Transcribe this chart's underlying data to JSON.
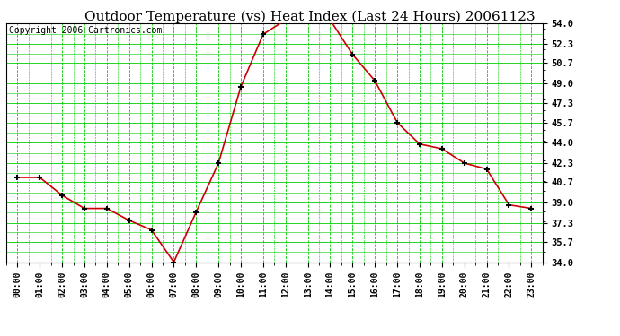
{
  "title": "Outdoor Temperature (vs) Heat Index (Last 24 Hours) 20061123",
  "copyright": "Copyright 2006 Cartronics.com",
  "x_labels": [
    "00:00",
    "01:00",
    "02:00",
    "03:00",
    "04:00",
    "05:00",
    "06:00",
    "07:00",
    "08:00",
    "09:00",
    "10:00",
    "11:00",
    "12:00",
    "13:00",
    "14:00",
    "15:00",
    "16:00",
    "17:00",
    "18:00",
    "19:00",
    "20:00",
    "21:00",
    "22:00",
    "23:00"
  ],
  "y_values": [
    41.1,
    41.1,
    39.6,
    38.5,
    38.5,
    37.5,
    36.7,
    34.0,
    38.2,
    42.3,
    48.7,
    53.1,
    54.3,
    54.3,
    54.3,
    51.4,
    49.2,
    45.7,
    43.9,
    43.5,
    42.3,
    41.8,
    38.8,
    38.5
  ],
  "y_min": 34.0,
  "y_max": 54.0,
  "y_ticks": [
    34.0,
    35.7,
    37.3,
    39.0,
    40.7,
    42.3,
    44.0,
    45.7,
    47.3,
    49.0,
    50.7,
    52.3,
    54.0
  ],
  "line_color": "#cc0000",
  "marker_color": "#000000",
  "bg_color": "#ffffff",
  "plot_bg_color": "#ffffff",
  "grid_h_color": "#00cc00",
  "grid_v_color": "#00cc00",
  "title_fontsize": 11,
  "copyright_fontsize": 7
}
